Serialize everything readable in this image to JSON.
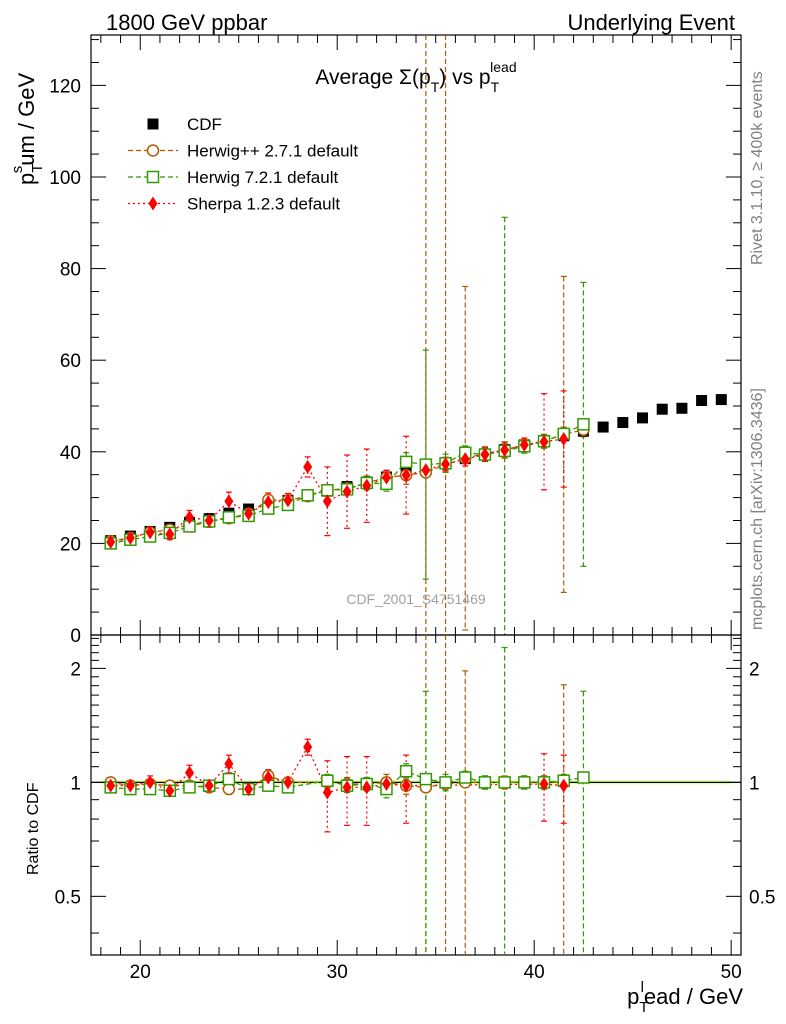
{
  "header": {
    "left": "1800 GeV ppbar",
    "right": "Underlying Event"
  },
  "title": {
    "prefix": "Average Σ(p",
    "sub": "T",
    "mid": ") vs p",
    "sup": "lead",
    "sub2": "T"
  },
  "side_labels": {
    "rivet": "Rivet 3.1.10, ≥ 400k events",
    "mcplots": "mcplots.cern.ch [arXiv:1306.3436]"
  },
  "watermark": "CDF_2001_S4751469",
  "axis_labels": {
    "y_main": {
      "base": "p",
      "sup": "s",
      "sub": "T",
      "rest": "um / GeV"
    },
    "y_ratio": "Ratio to CDF",
    "x": {
      "base": "p",
      "sub": "T",
      "sup": "l",
      "rest": "ead / GeV"
    }
  },
  "colors": {
    "data": "#000000",
    "herwigpp": "#b35900",
    "herwig7": "#339900",
    "sherpa": "#ff0000",
    "band": "#ddff99"
  },
  "chart_data": [
    {
      "type": "scatter",
      "name": "main",
      "x_range": [
        17.5,
        50.5
      ],
      "y_range": [
        0,
        131
      ],
      "y_ticks": [
        0,
        20,
        40,
        60,
        80,
        100,
        120
      ],
      "y_tick_labels": [
        "0",
        "20",
        "40",
        "60",
        "80",
        "100",
        "120"
      ],
      "x_ticks": [
        20,
        30,
        40,
        50
      ],
      "x_tick_labels": [
        "20",
        "30",
        "40",
        "50"
      ],
      "legend": [
        {
          "key": "data",
          "label": "CDF"
        },
        {
          "key": "herwigpp",
          "label": "Herwig++ 2.7.1 default"
        },
        {
          "key": "herwig7",
          "label": "Herwig 7.2.1 default"
        },
        {
          "key": "sherpa",
          "label": "Sherpa 1.2.3 default"
        }
      ],
      "series": [
        {
          "key": "data",
          "name": "CDF",
          "marker": "square-filled",
          "line": "none",
          "x": [
            18.5,
            19.5,
            20.5,
            21.5,
            22.5,
            23.5,
            24.5,
            25.5,
            26.5,
            27.5,
            28.5,
            29.5,
            30.5,
            31.5,
            32.5,
            33.5,
            34.5,
            35.5,
            36.5,
            37.5,
            38.5,
            39.5,
            40.5,
            41.5,
            42.5,
            43.5,
            44.5,
            45.5,
            46.5,
            47.5,
            48.5,
            49.5
          ],
          "y": [
            20.6,
            21.6,
            22.6,
            23.5,
            24.6,
            25.4,
            26.6,
            27.5,
            28.5,
            29.4,
            30.4,
            31.4,
            32.4,
            33.4,
            34.5,
            35.6,
            36.5,
            37.6,
            38.5,
            39.5,
            40.5,
            41.5,
            42.4,
            43.5,
            44.5,
            45.4,
            46.4,
            47.4,
            49.3,
            49.5,
            51.2,
            51.4
          ],
          "err": [
            0,
            0,
            0,
            0,
            0,
            0,
            0,
            0,
            0,
            0,
            0,
            0,
            0,
            0,
            0,
            0,
            0,
            0,
            0,
            0,
            0,
            0,
            0,
            0,
            0,
            0,
            0,
            0,
            0,
            0,
            0,
            0
          ]
        },
        {
          "key": "herwigpp",
          "name": "Herwig++ 2.7.1 default",
          "marker": "circle-open",
          "line": "dashed",
          "x": [
            18.5,
            19.5,
            20.5,
            21.5,
            22.5,
            23.5,
            24.5,
            25.5,
            26.5,
            27.5,
            28.5,
            29.5,
            30.5,
            31.5,
            32.5,
            33.5,
            34.5,
            35.5,
            36.5,
            37.5,
            38.5,
            39.5,
            40.5,
            41.5,
            42.5
          ],
          "y": [
            20.5,
            21.2,
            22.4,
            23.0,
            24.1,
            24.8,
            25.5,
            26.5,
            29.5,
            29.4,
            30.3,
            31.6,
            32.0,
            33.2,
            34.4,
            34.9,
            35.5,
            37.2,
            38.6,
            39.6,
            40.4,
            41.5,
            42.3,
            43.8,
            44.8
          ],
          "err": [
            0.6,
            0.6,
            0.7,
            0.7,
            0.8,
            0.8,
            0.9,
            0.9,
            1.0,
            1.0,
            1.0,
            1.2,
            1.2,
            1.5,
            1.6,
            2.0,
            130,
            130,
            37.5,
            1.5,
            1.8,
            1.5,
            1.5,
            34.5,
            1.5
          ]
        },
        {
          "key": "herwig7",
          "name": "Herwig 7.2.1 default",
          "marker": "square-open",
          "line": "dashed",
          "x": [
            18.5,
            19.5,
            20.5,
            21.5,
            22.5,
            23.5,
            24.5,
            25.5,
            26.5,
            27.5,
            28.5,
            29.5,
            30.5,
            31.5,
            32.5,
            33.5,
            34.5,
            35.5,
            36.5,
            37.5,
            38.5,
            39.5,
            40.5,
            41.5,
            42.5
          ],
          "y": [
            20.0,
            20.8,
            21.5,
            22.3,
            23.7,
            24.8,
            25.7,
            26.0,
            27.6,
            28.4,
            30.5,
            31.6,
            31.8,
            33.2,
            33.0,
            37.8,
            37.2,
            37.5,
            39.8,
            39.4,
            40.2,
            41.2,
            42.3,
            43.9,
            46.0
          ],
          "err": [
            0.6,
            0.6,
            0.7,
            0.7,
            0.8,
            0.8,
            0.9,
            0.9,
            1.0,
            1.0,
            1.0,
            1.2,
            1.2,
            1.5,
            1.6,
            2.0,
            25,
            2.0,
            1.5,
            1.5,
            51,
            1.5,
            1.5,
            1.5,
            31
          ]
        },
        {
          "key": "sherpa",
          "name": "Sherpa 1.2.3 default",
          "marker": "diamond-filled",
          "line": "dotted",
          "x": [
            18.5,
            19.5,
            20.5,
            21.5,
            22.5,
            23.5,
            24.5,
            25.5,
            26.5,
            27.5,
            28.5,
            29.5,
            30.5,
            31.5,
            32.5,
            33.5,
            34.5,
            35.5,
            36.5,
            37.5,
            38.5,
            39.5,
            40.5,
            41.5
          ],
          "y": [
            20.3,
            21.2,
            22.4,
            22.0,
            25.7,
            25.0,
            29.2,
            26.5,
            29.0,
            29.4,
            36.7,
            29.2,
            31.3,
            32.6,
            34.4,
            34.9,
            36.0,
            37.3,
            38.4,
            39.4,
            40.4,
            41.5,
            42.2,
            42.8
          ],
          "err": [
            1.0,
            1.0,
            1.2,
            1.2,
            1.5,
            1.5,
            2.0,
            1.5,
            2.0,
            1.5,
            2.2,
            7.5,
            8.0,
            8.0,
            1.5,
            8.5,
            1.5,
            1.5,
            1.5,
            1.5,
            1.5,
            1.5,
            10.5,
            10.5
          ]
        }
      ]
    },
    {
      "type": "line",
      "name": "ratio",
      "x_range": [
        17.5,
        50.5
      ],
      "y_range": [
        0.35,
        2.45
      ],
      "y_scale": "log",
      "y_ticks": [
        0.5,
        1,
        2
      ],
      "y_tick_labels": [
        "0.5",
        "1",
        "2"
      ],
      "reference": 1.0,
      "band": {
        "x": [
          18,
          50
        ],
        "half_width": 0.012
      },
      "series": [
        {
          "key": "herwigpp",
          "marker": "circle-open",
          "line": "dashed",
          "x": [
            18.5,
            19.5,
            20.5,
            21.5,
            22.5,
            23.5,
            24.5,
            25.5,
            26.5,
            27.5,
            29.5,
            30.5,
            31.5,
            32.5,
            33.5,
            34.5,
            35.5,
            36.5,
            37.5,
            38.5,
            39.5,
            40.5,
            41.5
          ],
          "y": [
            1.0,
            0.98,
            0.99,
            0.98,
            0.98,
            0.97,
            0.96,
            0.96,
            1.04,
            1.0,
            1.0,
            0.99,
            0.99,
            1.0,
            0.98,
            0.97,
            0.99,
            1.0,
            1.0,
            1.0,
            1.0,
            1.0,
            1.0
          ],
          "err": [
            0.03,
            0.03,
            0.03,
            0.03,
            0.03,
            0.03,
            0.03,
            0.03,
            0.03,
            0.03,
            0.04,
            0.04,
            0.04,
            0.05,
            0.05,
            3.5,
            3.5,
            0.97,
            0.04,
            0.04,
            0.04,
            0.04,
            0.81
          ]
        },
        {
          "key": "herwig7",
          "marker": "square-open",
          "line": "dashed",
          "x": [
            18.5,
            19.5,
            20.5,
            21.5,
            22.5,
            23.5,
            24.5,
            25.5,
            26.5,
            27.5,
            29.5,
            30.5,
            31.5,
            32.5,
            33.5,
            34.5,
            35.5,
            36.5,
            37.5,
            38.5,
            39.5,
            40.5,
            41.5,
            42.5
          ],
          "y": [
            0.97,
            0.96,
            0.96,
            0.95,
            0.97,
            0.98,
            1.02,
            0.96,
            0.98,
            0.97,
            1.01,
            0.98,
            0.99,
            0.96,
            1.07,
            1.02,
            1.0,
            1.03,
            1.0,
            1.0,
            1.0,
            1.0,
            1.01,
            1.03
          ],
          "err": [
            0.03,
            0.03,
            0.03,
            0.03,
            0.03,
            0.03,
            0.03,
            0.03,
            0.03,
            0.03,
            0.04,
            0.04,
            0.04,
            0.05,
            0.05,
            0.72,
            0.05,
            0.04,
            0.04,
            1.27,
            0.04,
            0.04,
            0.04,
            0.71
          ]
        },
        {
          "key": "sherpa",
          "marker": "diamond-filled",
          "line": "dotted",
          "x": [
            18.5,
            19.5,
            20.5,
            21.5,
            22.5,
            23.5,
            24.5,
            25.5,
            26.5,
            27.5,
            28.5,
            29.5,
            30.5,
            31.5,
            32.5,
            33.5,
            40.5,
            41.5
          ],
          "y": [
            0.98,
            0.98,
            1.0,
            0.95,
            1.06,
            0.98,
            1.12,
            0.96,
            1.03,
            1.0,
            1.24,
            0.94,
            0.97,
            0.97,
            0.99,
            0.98,
            0.99,
            0.98
          ],
          "err": [
            0.03,
            0.03,
            0.04,
            0.03,
            0.05,
            0.03,
            0.06,
            0.03,
            0.05,
            0.03,
            0.06,
            0.2,
            0.2,
            0.2,
            0.04,
            0.2,
            0.2,
            0.2
          ]
        }
      ]
    }
  ]
}
